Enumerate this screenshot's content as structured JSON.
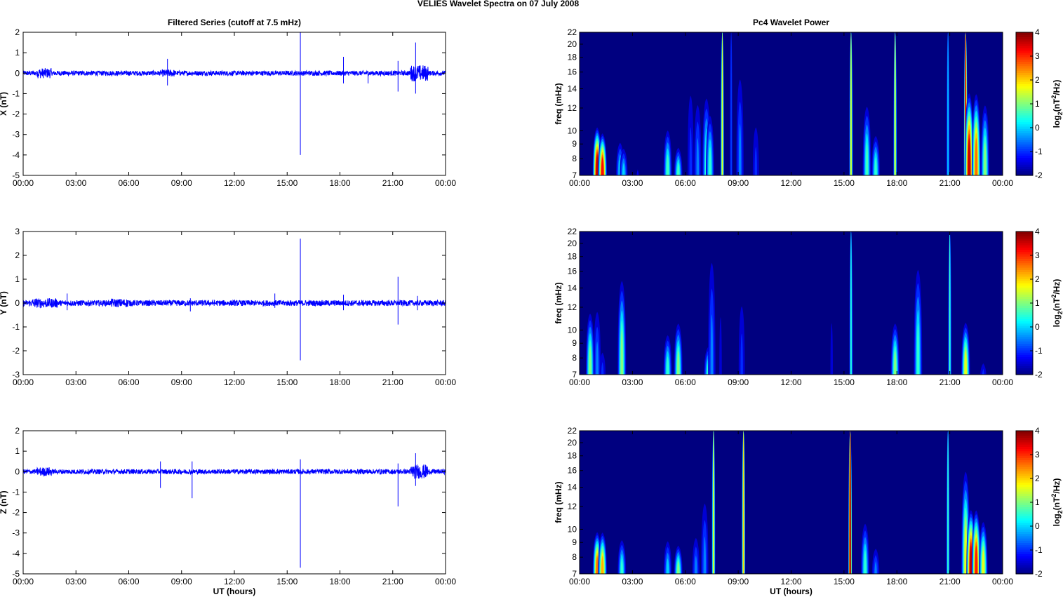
{
  "figure_title": "VELIES Wavelet Spectra on 07 July      2008",
  "chart_data": [
    {
      "type": "line",
      "panel": "X",
      "title": "Filtered Series (cutoff at 7.5 mHz)",
      "ylabel": "X (nT)",
      "xlabel": "",
      "xlim": [
        0,
        24
      ],
      "ylim": [
        -5,
        2
      ],
      "yticks": [
        -5,
        -4,
        -3,
        -2,
        -1,
        0,
        1,
        2
      ],
      "xticks": [
        "00:00",
        "03:00",
        "06:00",
        "09:00",
        "12:00",
        "15:00",
        "18:00",
        "21:00",
        "00:00"
      ],
      "color": "#0000ff",
      "noise_amplitude": 0.12,
      "disturbed_intervals": [
        [
          0.8,
          1.6,
          0.25
        ],
        [
          22.0,
          23.0,
          0.4
        ],
        [
          7.9,
          8.6,
          0.18
        ]
      ],
      "spikes": [
        [
          8.2,
          0.7,
          -0.6
        ],
        [
          15.75,
          2.0,
          -4.0
        ],
        [
          18.2,
          0.8,
          -0.5
        ],
        [
          19.6,
          0.1,
          -0.5
        ],
        [
          21.3,
          0.6,
          -0.9
        ],
        [
          22.3,
          1.5,
          -1.0
        ]
      ]
    },
    {
      "type": "heatmap",
      "panel": "X",
      "title": "Pc4 Wavelet Power",
      "ylabel": "freq (mHz)",
      "xlabel": "",
      "xlim": [
        0,
        24
      ],
      "ylim": [
        7,
        22
      ],
      "yticks": [
        7,
        8,
        9,
        10,
        12,
        14,
        16,
        18,
        20,
        22
      ],
      "xticks": [
        "00:00",
        "03:00",
        "06:00",
        "09:00",
        "12:00",
        "15:00",
        "18:00",
        "21:00",
        "00:00"
      ],
      "clim": [
        -2,
        4
      ],
      "colorbar_ticks": [
        -2,
        -1,
        0,
        1,
        2,
        3,
        4
      ],
      "events": [
        [
          1.0,
          10.5,
          3.6
        ],
        [
          1.3,
          10,
          3.2
        ],
        [
          2.3,
          9.5,
          0.2
        ],
        [
          2.5,
          9,
          0
        ],
        [
          3.3,
          8,
          -1.3
        ],
        [
          5.0,
          10.5,
          0.6
        ],
        [
          5.6,
          9,
          0.6
        ],
        [
          6.3,
          17,
          -1
        ],
        [
          6.7,
          14,
          -0.5
        ],
        [
          7.2,
          14,
          0.5
        ],
        [
          7.4,
          12,
          0.5
        ],
        [
          8.1,
          22,
          1.6
        ],
        [
          8.6,
          22,
          -0.8
        ],
        [
          9.1,
          18,
          -0.5
        ],
        [
          10.0,
          12,
          -1
        ],
        [
          15.4,
          22,
          1.6
        ],
        [
          16.3,
          13,
          0.6
        ],
        [
          16.8,
          10,
          0.5
        ],
        [
          17.9,
          22,
          1.6
        ],
        [
          20.9,
          22,
          0
        ],
        [
          21.9,
          22,
          3.5
        ],
        [
          22.1,
          14,
          3.6
        ],
        [
          22.5,
          14,
          2.6
        ],
        [
          23.0,
          13,
          1
        ]
      ]
    },
    {
      "type": "line",
      "panel": "Y",
      "ylabel": "Y (nT)",
      "xlabel": "",
      "xlim": [
        0,
        24
      ],
      "ylim": [
        -3,
        3
      ],
      "yticks": [
        -3,
        -2,
        -1,
        0,
        1,
        2,
        3
      ],
      "xticks": [
        "00:00",
        "03:00",
        "06:00",
        "09:00",
        "12:00",
        "15:00",
        "18:00",
        "21:00",
        "00:00"
      ],
      "color": "#0000ff",
      "noise_amplitude": 0.12,
      "disturbed_intervals": [
        [
          0.5,
          2.0,
          0.2
        ],
        [
          5.0,
          6.0,
          0.18
        ]
      ],
      "spikes": [
        [
          2.5,
          0.4,
          -0.3
        ],
        [
          9.5,
          0.2,
          -0.35
        ],
        [
          14.3,
          0.4,
          -0.2
        ],
        [
          15.75,
          2.7,
          -2.4
        ],
        [
          18.2,
          0.35,
          -0.3
        ],
        [
          21.3,
          1.1,
          -0.9
        ],
        [
          22.4,
          0.3,
          -0.3
        ]
      ]
    },
    {
      "type": "heatmap",
      "panel": "Y",
      "ylabel": "freq (mHz)",
      "xlabel": "",
      "xlim": [
        0,
        24
      ],
      "ylim": [
        7,
        22
      ],
      "yticks": [
        7,
        8,
        9,
        10,
        12,
        14,
        16,
        18,
        20,
        22
      ],
      "xticks": [
        "00:00",
        "03:00",
        "06:00",
        "09:00",
        "12:00",
        "15:00",
        "18:00",
        "21:00",
        "00:00"
      ],
      "clim": [
        -2,
        4
      ],
      "colorbar_ticks": [
        -2,
        -1,
        0,
        1,
        2,
        3,
        4
      ],
      "events": [
        [
          0.6,
          12,
          1
        ],
        [
          1.0,
          13,
          -0.5
        ],
        [
          1.3,
          9,
          -1
        ],
        [
          2.4,
          16,
          1
        ],
        [
          5.0,
          10,
          0.5
        ],
        [
          5.6,
          11,
          1
        ],
        [
          7.3,
          9,
          0.5
        ],
        [
          7.5,
          21,
          -0.5
        ],
        [
          8.0,
          20,
          -1.5
        ],
        [
          9.2,
          15,
          -1
        ],
        [
          14.3,
          18,
          -1.5
        ],
        [
          15.4,
          22,
          0.5
        ],
        [
          17.9,
          11,
          1
        ],
        [
          19.2,
          18,
          0.5
        ],
        [
          21.0,
          22,
          0.6
        ],
        [
          21.9,
          11,
          1.6
        ],
        [
          22.9,
          8,
          -1
        ]
      ]
    },
    {
      "type": "line",
      "panel": "Z",
      "ylabel": "Z (nT)",
      "xlabel": "UT (hours)",
      "xlim": [
        0,
        24
      ],
      "ylim": [
        -5,
        2
      ],
      "yticks": [
        -5,
        -4,
        -3,
        -2,
        -1,
        0,
        1,
        2
      ],
      "xticks": [
        "00:00",
        "03:00",
        "06:00",
        "09:00",
        "12:00",
        "15:00",
        "18:00",
        "21:00",
        "00:00"
      ],
      "color": "#0000ff",
      "noise_amplitude": 0.12,
      "disturbed_intervals": [
        [
          0.8,
          1.6,
          0.22
        ],
        [
          22.0,
          23.0,
          0.35
        ]
      ],
      "spikes": [
        [
          7.8,
          0.5,
          -0.8
        ],
        [
          9.6,
          0.5,
          -1.3
        ],
        [
          15.75,
          0.6,
          -4.7
        ],
        [
          21.3,
          0.4,
          -1.7
        ],
        [
          22.3,
          0.9,
          -0.7
        ]
      ]
    },
    {
      "type": "heatmap",
      "panel": "Z",
      "ylabel": "freq (mHz)",
      "xlabel": "UT (hours)",
      "xlim": [
        0,
        24
      ],
      "ylim": [
        7,
        22
      ],
      "yticks": [
        7,
        8,
        9,
        10,
        12,
        14,
        16,
        18,
        20,
        22
      ],
      "xticks": [
        "00:00",
        "03:00",
        "06:00",
        "09:00",
        "12:00",
        "15:00",
        "18:00",
        "21:00",
        "00:00"
      ],
      "clim": [
        -2,
        4
      ],
      "colorbar_ticks": [
        -2,
        -1,
        0,
        1,
        2,
        3,
        4
      ],
      "events": [
        [
          1.0,
          10,
          2.6
        ],
        [
          1.3,
          10,
          2.2
        ],
        [
          2.4,
          9.5,
          0.5
        ],
        [
          5.0,
          9.5,
          0
        ],
        [
          5.6,
          9,
          1
        ],
        [
          6.6,
          10,
          -0.5
        ],
        [
          7.1,
          14,
          -0.5
        ],
        [
          7.6,
          22,
          1.6
        ],
        [
          9.3,
          22,
          2
        ],
        [
          15.35,
          22,
          4
        ],
        [
          16.2,
          11,
          0.5
        ],
        [
          16.8,
          9,
          -0.5
        ],
        [
          20.9,
          22,
          0.6
        ],
        [
          21.9,
          17,
          1.6
        ],
        [
          22.2,
          12,
          3.6
        ],
        [
          22.5,
          12,
          3.1
        ],
        [
          22.9,
          11,
          1.6
        ]
      ]
    }
  ],
  "colorbar_label": {
    "base": "log",
    "sub": "2",
    "mid": "(nT",
    "sup": "2",
    "end": "/Hz)"
  },
  "colors": {
    "background": "#00008f",
    "line": "#0000ff"
  }
}
